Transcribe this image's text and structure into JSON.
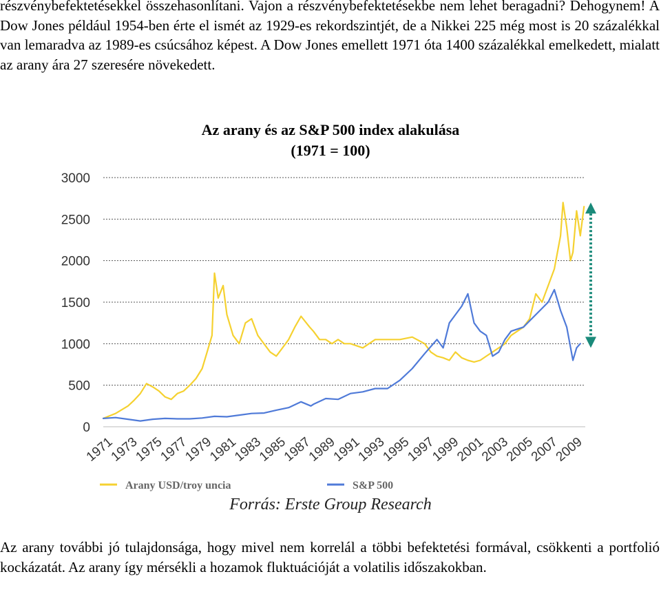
{
  "text": {
    "paragraph_top": "részvénybefektetésekkel összehasonlítani. Vajon a részvénybefektetésekbe nem lehet beragadni? Dehogynem! A Dow Jones például 1954-ben érte el ismét az 1929-es rekordszintjét, de a Nikkei 225 még most is 20 százalékkal van lemaradva az 1989-es csúcsához képest. A Dow Jones emellett 1971 óta 1400 százalékkal emelkedett, mialatt az arany ára 27 szeresére növekedett.",
    "paragraph_bottom": "Az arany további jó tulajdonsága, hogy mivel nem korrelál a többi befektetési formával, csökkenti a portfolió kockázatát. Az arany így mérsékli a hozamok fluktuációját a volatilis időszakokban.",
    "source": "Forrás: Erste Group Research"
  },
  "chart_data": {
    "type": "line",
    "title": "Az arany és az S&P 500 index alakulása",
    "subtitle": "(1971 = 100)",
    "xlabel": "",
    "ylabel": "",
    "ylim": [
      0,
      3000
    ],
    "xlim": [
      1971,
      2010
    ],
    "y_ticks": [
      "0",
      "500",
      "1000",
      "1500",
      "2000",
      "2500",
      "3000"
    ],
    "x_ticks": [
      "1971",
      "1973",
      "1975",
      "1977",
      "1979",
      "1981",
      "1983",
      "1985",
      "1987",
      "1989",
      "1991",
      "1993",
      "1995",
      "1997",
      "1999",
      "2001",
      "2003",
      "2005",
      "2007",
      "2009"
    ],
    "grid": "horizontal dotted",
    "legend": "bottom",
    "series": [
      {
        "name": "Arany USD/troy uncia",
        "color": "#f5d130",
        "x": [
          1971,
          1972,
          1973,
          1973.5,
          1974,
          1974.5,
          1975,
          1975.5,
          1976,
          1976.5,
          1977,
          1977.5,
          1978,
          1978.5,
          1979,
          1979.4,
          1979.8,
          1980.0,
          1980.3,
          1980.7,
          1981,
          1981.5,
          1982,
          1982.5,
          1983,
          1983.5,
          1984,
          1984.5,
          1985,
          1985.5,
          1986,
          1986.5,
          1987,
          1987.7,
          1988,
          1988.5,
          1989,
          1989.5,
          1990,
          1990.5,
          1991,
          1992,
          1993,
          1994,
          1995,
          1996,
          1996.5,
          1997,
          1997.5,
          1998,
          1998.5,
          1999,
          1999.5,
          2000,
          2000.5,
          2001,
          2001.5,
          2002,
          2002.5,
          2003,
          2003.5,
          2004,
          2004.5,
          2005,
          2005.5,
          2006,
          2006.5,
          2007,
          2007.5,
          2008,
          2008.2,
          2008.5,
          2008.8,
          2009,
          2009.3,
          2009.6,
          2009.9
        ],
        "values": [
          100,
          160,
          250,
          320,
          400,
          520,
          480,
          430,
          360,
          330,
          400,
          430,
          500,
          580,
          700,
          900,
          1100,
          1850,
          1550,
          1700,
          1350,
          1100,
          1000,
          1250,
          1300,
          1100,
          1000,
          900,
          850,
          950,
          1050,
          1200,
          1330,
          1200,
          1150,
          1050,
          1050,
          1000,
          1050,
          1000,
          1000,
          950,
          1050,
          1050,
          1050,
          1080,
          1040,
          1000,
          900,
          850,
          830,
          800,
          900,
          830,
          800,
          780,
          800,
          850,
          900,
          950,
          1000,
          1100,
          1150,
          1200,
          1300,
          1600,
          1500,
          1700,
          1900,
          2300,
          2700,
          2400,
          2000,
          2100,
          2600,
          2300,
          2650
        ]
      },
      {
        "name": "S&P 500",
        "color": "#4f7ad8",
        "x": [
          1971,
          1972,
          1973,
          1974,
          1975,
          1976,
          1977,
          1978,
          1979,
          1980,
          1981,
          1982,
          1983,
          1984,
          1985,
          1986,
          1987,
          1987.8,
          1988,
          1989,
          1990,
          1991,
          1992,
          1993,
          1994,
          1995,
          1996,
          1997,
          1998,
          1998.5,
          1999,
          1999.5,
          2000,
          2000.5,
          2001,
          2001.5,
          2002,
          2002.5,
          2003,
          2003.5,
          2004,
          2005,
          2006,
          2007,
          2007.5,
          2008,
          2008.5,
          2009,
          2009.3,
          2009.6
        ],
        "values": [
          100,
          110,
          90,
          70,
          90,
          100,
          95,
          95,
          105,
          125,
          120,
          140,
          160,
          165,
          200,
          230,
          300,
          250,
          270,
          340,
          330,
          400,
          420,
          460,
          460,
          560,
          700,
          880,
          1050,
          950,
          1250,
          1350,
          1450,
          1600,
          1250,
          1150,
          1100,
          850,
          900,
          1050,
          1150,
          1200,
          1350,
          1500,
          1650,
          1400,
          1200,
          800,
          950,
          1000
        ]
      }
    ],
    "annotation": {
      "type": "double-arrow",
      "color": "#1a8a7a",
      "x": 2010,
      "y_from": 1000,
      "y_to": 2650
    }
  }
}
